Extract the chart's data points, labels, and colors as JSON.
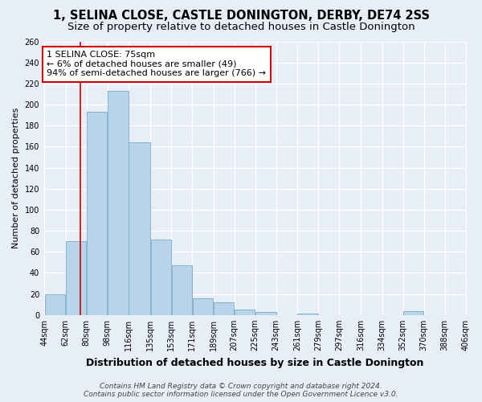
{
  "title": "1, SELINA CLOSE, CASTLE DONINGTON, DERBY, DE74 2SS",
  "subtitle": "Size of property relative to detached houses in Castle Donington",
  "xlabel": "Distribution of detached houses by size in Castle Donington",
  "ylabel": "Number of detached properties",
  "bar_values": [
    20,
    70,
    193,
    213,
    164,
    72,
    47,
    16,
    12,
    5,
    3,
    0,
    1,
    0,
    0,
    0,
    0,
    4,
    0,
    0
  ],
  "bin_labels": [
    "44sqm",
    "62sqm",
    "80sqm",
    "98sqm",
    "116sqm",
    "135sqm",
    "153sqm",
    "171sqm",
    "189sqm",
    "207sqm",
    "225sqm",
    "243sqm",
    "261sqm",
    "279sqm",
    "297sqm",
    "316sqm",
    "334sqm",
    "352sqm",
    "370sqm",
    "388sqm",
    "406sqm"
  ],
  "bar_left_edges": [
    44,
    62,
    80,
    98,
    116,
    135,
    153,
    171,
    189,
    207,
    225,
    243,
    261,
    279,
    297,
    316,
    334,
    352,
    370,
    388
  ],
  "bar_widths": [
    18,
    18,
    18,
    18,
    19,
    18,
    18,
    18,
    18,
    18,
    18,
    18,
    18,
    18,
    19,
    18,
    18,
    18,
    18,
    18
  ],
  "bar_color": "#b8d4ea",
  "bar_edge_color": "#7aaac8",
  "property_line_x": 75,
  "property_line_color": "#cc0000",
  "annotation_text": "1 SELINA CLOSE: 75sqm\n← 6% of detached houses are smaller (49)\n94% of semi-detached houses are larger (766) →",
  "annotation_box_color": "#ffffff",
  "annotation_box_edge_color": "#cc0000",
  "ylim": [
    0,
    260
  ],
  "yticks": [
    0,
    20,
    40,
    60,
    80,
    100,
    120,
    140,
    160,
    180,
    200,
    220,
    240,
    260
  ],
  "footer_line1": "Contains HM Land Registry data © Crown copyright and database right 2024.",
  "footer_line2": "Contains public sector information licensed under the Open Government Licence v3.0.",
  "background_color": "#e8eef8",
  "grid_color": "#ffffff",
  "title_fontsize": 10.5,
  "subtitle_fontsize": 9.5,
  "xlabel_fontsize": 9,
  "ylabel_fontsize": 8,
  "tick_fontsize": 7,
  "annotation_fontsize": 8,
  "footer_fontsize": 6.5
}
